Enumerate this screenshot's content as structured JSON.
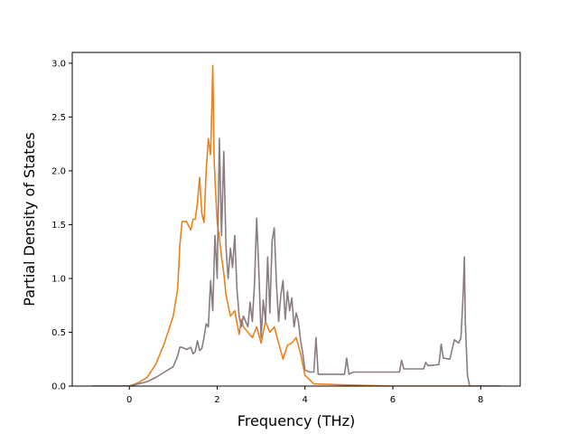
{
  "chart_data": {
    "type": "line",
    "title": "",
    "xlabel": "Frequency (THz)",
    "ylabel": "Partial Density of States",
    "xlim": [
      -1.3,
      8.9
    ],
    "ylim": [
      0,
      3.1
    ],
    "xticks": [
      0,
      2,
      4,
      6,
      8
    ],
    "xtick_labels": [
      "0",
      "2",
      "4",
      "6",
      "8"
    ],
    "yticks": [
      0.0,
      0.5,
      1.0,
      1.5,
      2.0,
      2.5,
      3.0
    ],
    "ytick_labels": [
      "0.0",
      "0.5",
      "1.0",
      "1.5",
      "2.0",
      "2.5",
      "3.0"
    ],
    "grid": false,
    "legend": "none",
    "series": [
      {
        "color": "#e8821e",
        "x": [
          -0.85,
          0.0,
          0.2,
          0.4,
          0.6,
          0.8,
          1.0,
          1.1,
          1.15,
          1.2,
          1.3,
          1.4,
          1.45,
          1.5,
          1.55,
          1.6,
          1.65,
          1.7,
          1.75,
          1.8,
          1.85,
          1.88,
          1.9,
          1.93,
          1.96,
          2.0,
          2.05,
          2.1,
          2.15,
          2.2,
          2.3,
          2.4,
          2.5,
          2.55,
          2.6,
          2.7,
          2.8,
          2.9,
          3.0,
          3.1,
          3.2,
          3.3,
          3.4,
          3.5,
          3.6,
          3.7,
          3.8,
          3.9,
          4.0,
          4.2,
          5.0,
          6.0,
          7.0,
          8.0,
          8.45
        ],
        "y": [
          0.0,
          0.0,
          0.03,
          0.08,
          0.2,
          0.4,
          0.65,
          0.9,
          1.3,
          1.53,
          1.53,
          1.45,
          1.55,
          1.55,
          1.7,
          1.94,
          1.6,
          1.52,
          2.0,
          2.3,
          2.15,
          2.6,
          2.98,
          2.1,
          1.85,
          1.52,
          1.38,
          1.2,
          1.05,
          0.85,
          0.65,
          0.7,
          0.48,
          0.62,
          0.55,
          0.5,
          0.45,
          0.55,
          0.4,
          0.6,
          0.5,
          0.55,
          0.4,
          0.25,
          0.38,
          0.4,
          0.45,
          0.3,
          0.1,
          0.02,
          0.01,
          0.0,
          0.0,
          0.0,
          0.0
        ]
      },
      {
        "color": "#8a7c80",
        "x": [
          -0.85,
          0.0,
          0.2,
          0.4,
          0.6,
          0.8,
          1.0,
          1.1,
          1.15,
          1.2,
          1.3,
          1.4,
          1.45,
          1.5,
          1.55,
          1.6,
          1.65,
          1.7,
          1.75,
          1.8,
          1.85,
          1.9,
          1.95,
          2.0,
          2.05,
          2.1,
          2.15,
          2.2,
          2.25,
          2.3,
          2.35,
          2.4,
          2.45,
          2.5,
          2.55,
          2.6,
          2.65,
          2.7,
          2.75,
          2.8,
          2.85,
          2.9,
          2.95,
          3.0,
          3.05,
          3.1,
          3.15,
          3.2,
          3.25,
          3.3,
          3.35,
          3.4,
          3.45,
          3.5,
          3.55,
          3.6,
          3.65,
          3.7,
          3.75,
          3.8,
          3.85,
          3.9,
          3.95,
          4.0,
          4.1,
          4.2,
          4.25,
          4.3,
          4.9,
          4.95,
          5.0,
          5.1,
          6.15,
          6.2,
          6.25,
          6.7,
          6.75,
          6.8,
          7.05,
          7.1,
          7.15,
          7.3,
          7.4,
          7.5,
          7.55,
          7.6,
          7.63,
          7.65,
          7.7,
          7.75,
          8.0,
          8.45
        ],
        "y": [
          0.0,
          0.0,
          0.02,
          0.04,
          0.08,
          0.13,
          0.18,
          0.28,
          0.36,
          0.36,
          0.34,
          0.36,
          0.3,
          0.32,
          0.42,
          0.33,
          0.35,
          0.45,
          0.58,
          0.55,
          0.98,
          0.7,
          1.4,
          1.0,
          2.3,
          1.4,
          2.18,
          1.3,
          1.0,
          1.28,
          1.1,
          1.4,
          0.9,
          0.65,
          0.55,
          0.65,
          0.6,
          0.55,
          0.78,
          0.6,
          0.95,
          1.56,
          1.05,
          0.45,
          0.8,
          0.6,
          1.2,
          0.68,
          1.35,
          1.47,
          0.95,
          0.6,
          0.85,
          0.98,
          0.62,
          0.88,
          0.7,
          0.82,
          0.55,
          0.68,
          0.6,
          0.42,
          0.3,
          0.15,
          0.13,
          0.13,
          0.45,
          0.11,
          0.11,
          0.26,
          0.11,
          0.13,
          0.13,
          0.24,
          0.16,
          0.16,
          0.22,
          0.19,
          0.2,
          0.39,
          0.26,
          0.25,
          0.43,
          0.4,
          0.45,
          0.85,
          1.2,
          0.6,
          0.1,
          0.0,
          0.0,
          0.0
        ]
      }
    ]
  }
}
